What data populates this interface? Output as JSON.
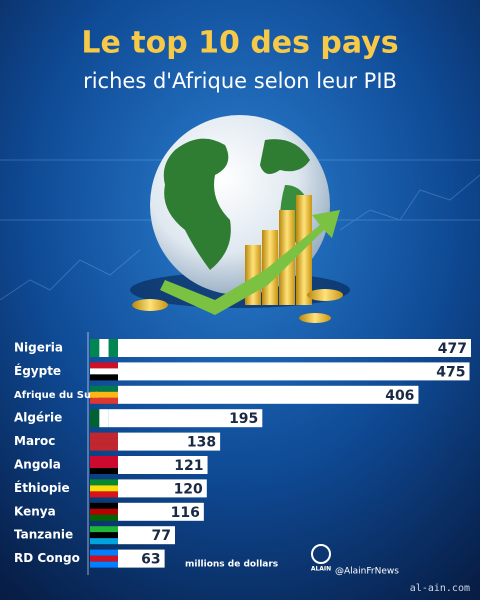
{
  "chart_data": {
    "type": "bar",
    "orientation": "horizontal",
    "title": "Le top 10 des pays",
    "subtitle": "riches d'Afrique selon leur PIB",
    "categories": [
      "Nigeria",
      "Égypte",
      "Afrique du Sud",
      "Algérie",
      "Maroc",
      "Angola",
      "Éthiopie",
      "Kenya",
      "Tanzanie",
      "RD Congo"
    ],
    "values": [
      477,
      475,
      406,
      195,
      138,
      121,
      120,
      116,
      77,
      63
    ],
    "color": "#ffffff",
    "label_color": "#1a2a44",
    "unit_note": "millions de dollars"
  },
  "brand": {
    "logo": "ALAIN",
    "handle": "@AlainFrNews",
    "website": "al-ain.com"
  }
}
